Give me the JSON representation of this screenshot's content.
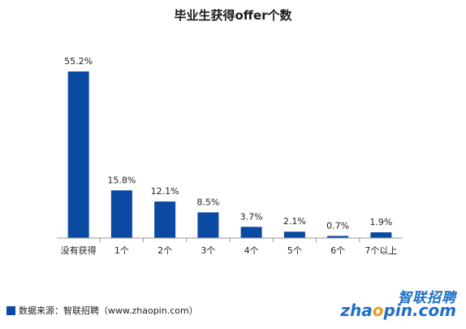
{
  "chart_data": {
    "type": "bar",
    "title": "毕业生获得offer个数",
    "categories": [
      "没有获得",
      "1个",
      "2个",
      "3个",
      "4个",
      "5个",
      "6个",
      "7个以上"
    ],
    "values": [
      55.2,
      15.8,
      12.1,
      8.5,
      3.7,
      2.1,
      0.7,
      1.9
    ],
    "value_labels": [
      "55.2%",
      "15.8%",
      "12.1%",
      "8.5%",
      "3.7%",
      "2.1%",
      "0.7%",
      "1.9%"
    ],
    "unit": "%",
    "ylim": [
      0,
      55.2
    ],
    "grid": false,
    "bar_color": "#0b4aa2"
  },
  "source": {
    "text": "数据来源：智联招聘（www.zhaopin.com）"
  },
  "logo": {
    "brand_cn": "智联招聘",
    "brand_en_prefix": "zha",
    "brand_en_o": "o",
    "brand_en_suffix": "pin.com",
    "accent_color": "#1e6fc8",
    "dot_color": "#f29a1b"
  }
}
